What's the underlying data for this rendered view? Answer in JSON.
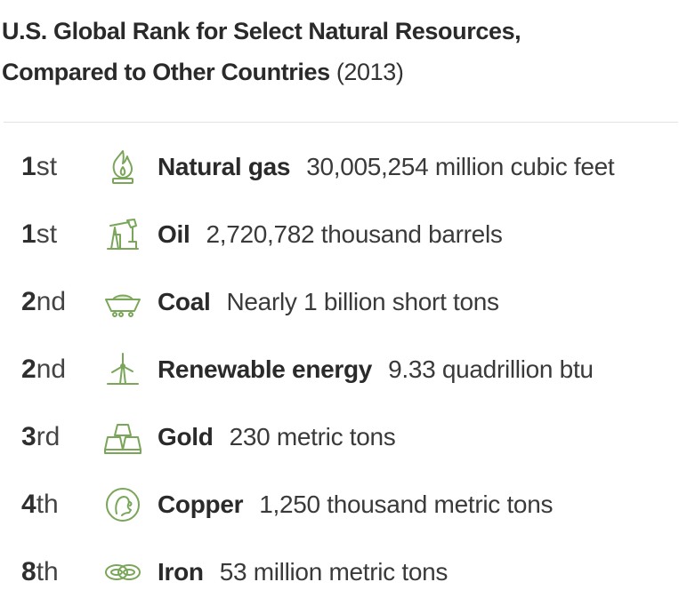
{
  "header": {
    "title_line1": "U.S. Global Rank for Select Natural Resources,",
    "title_line2": "Compared to Other Countries",
    "year": "(2013)"
  },
  "accent_color": "#7aa65a",
  "resources": [
    {
      "rank_num": "1",
      "rank_suffix": "st",
      "icon": "flame-icon",
      "name": "Natural gas",
      "value": "30,005,254 million cubic feet"
    },
    {
      "rank_num": "1",
      "rank_suffix": "st",
      "icon": "oil-pump-icon",
      "name": "Oil",
      "value": "2,720,782 thousand barrels"
    },
    {
      "rank_num": "2",
      "rank_suffix": "nd",
      "icon": "coal-cart-icon",
      "name": "Coal",
      "value": "Nearly 1 billion short tons"
    },
    {
      "rank_num": "2",
      "rank_suffix": "nd",
      "icon": "wind-turbine-icon",
      "name": "Renewable energy",
      "value": "9.33 quadrillion btu"
    },
    {
      "rank_num": "3",
      "rank_suffix": "rd",
      "icon": "gold-bars-icon",
      "name": "Gold",
      "value": "230 metric tons"
    },
    {
      "rank_num": "4",
      "rank_suffix": "th",
      "icon": "copper-coin-icon",
      "name": "Copper",
      "value": "1,250 thousand metric tons"
    },
    {
      "rank_num": "8",
      "rank_suffix": "th",
      "icon": "iron-chain-icon",
      "name": "Iron",
      "value": "53 million metric tons"
    }
  ]
}
